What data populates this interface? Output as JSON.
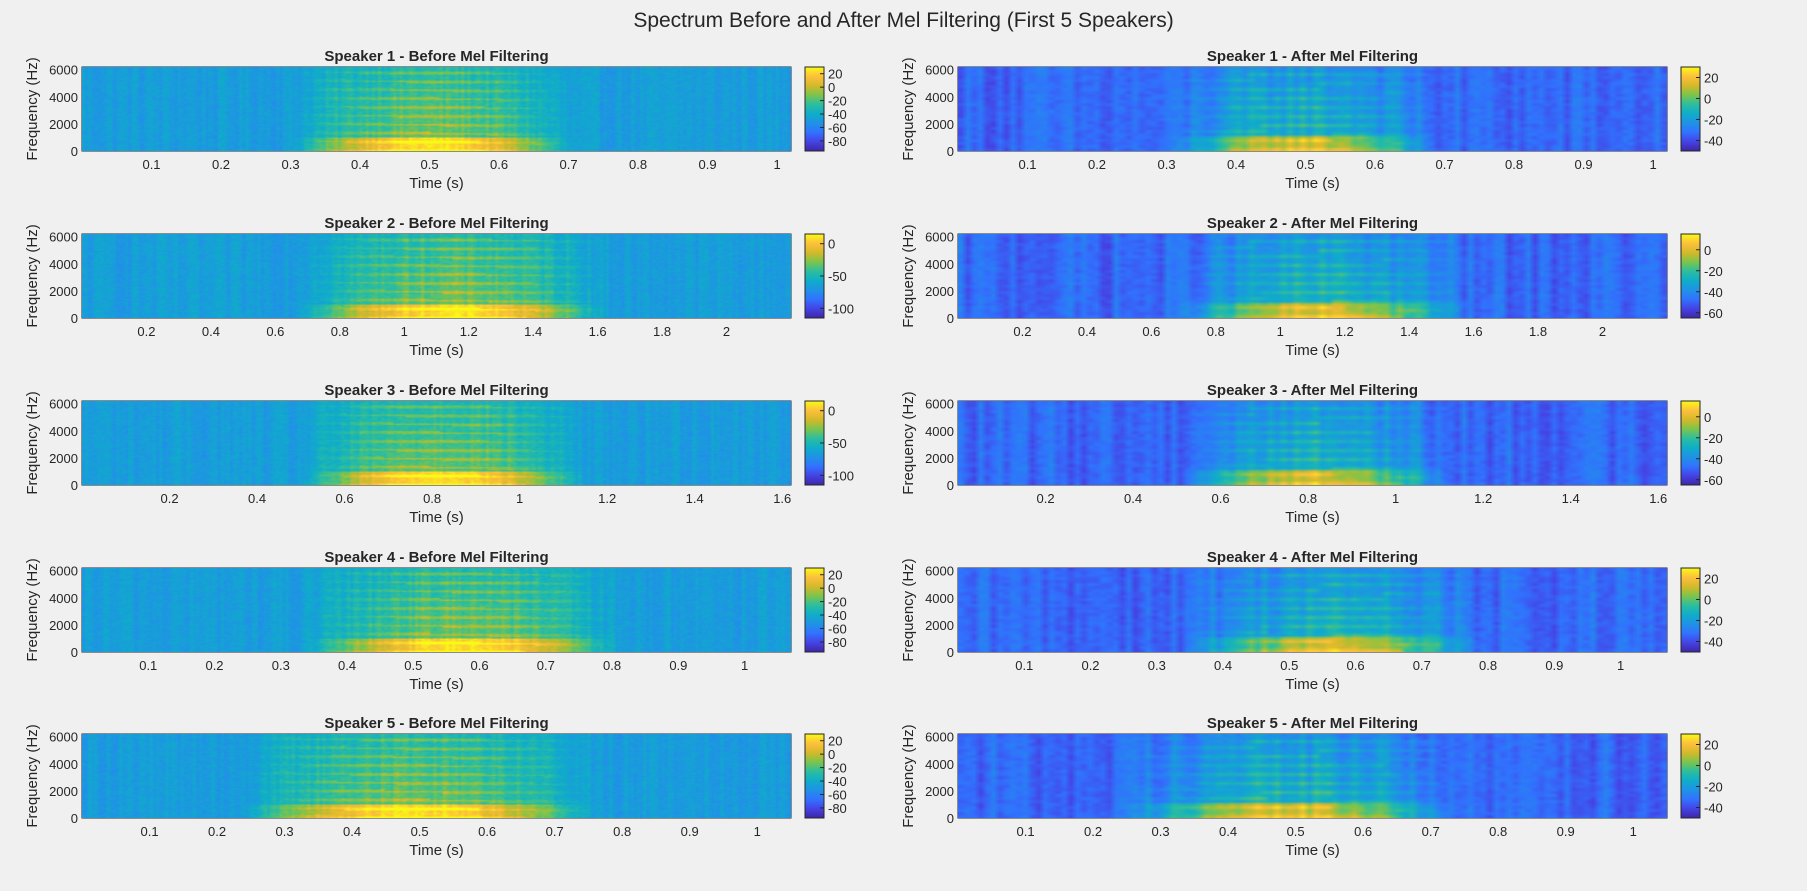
{
  "figure": {
    "title": "Spectrum Before and After Mel Filtering (First 5 Speakers)"
  },
  "colors": {
    "background": "#f0f0f0",
    "colormap": "parula",
    "colormap_stops": [
      "#3e26a8",
      "#4543e4",
      "#3172fe",
      "#2092e6",
      "#0fadc9",
      "#2cbe9e",
      "#7bc44c",
      "#d4b929",
      "#fdc03c",
      "#f9fa14"
    ]
  },
  "chart_data": [
    {
      "type": "heatmap",
      "title": "Speaker 1 - Before Mel Filtering",
      "xlabel": "Time (s)",
      "ylabel": "Frequency (Hz)",
      "xlim": [
        0,
        1.02
      ],
      "ylim": [
        0,
        6200
      ],
      "xticks": [
        "0.1",
        "0.2",
        "0.3",
        "0.4",
        "0.5",
        "0.6",
        "0.7",
        "0.8",
        "0.9",
        "1"
      ],
      "yticks": [
        "0",
        "2000",
        "4000",
        "6000"
      ],
      "colorbar": {
        "ticks": [
          "20",
          "0",
          "-20",
          "-40",
          "-60",
          "-80"
        ],
        "clim": [
          -95,
          30
        ]
      }
    },
    {
      "type": "heatmap",
      "title": "Speaker 1 - After Mel Filtering",
      "xlabel": "Time (s)",
      "ylabel": "Frequency (Hz)",
      "xlim": [
        0,
        1.02
      ],
      "ylim": [
        0,
        6200
      ],
      "xticks": [
        "0.1",
        "0.2",
        "0.3",
        "0.4",
        "0.5",
        "0.6",
        "0.7",
        "0.8",
        "0.9",
        "1"
      ],
      "yticks": [
        "0",
        "2000",
        "4000",
        "6000"
      ],
      "colorbar": {
        "ticks": [
          "20",
          "0",
          "-20",
          "-40"
        ],
        "clim": [
          -50,
          30
        ]
      }
    },
    {
      "type": "heatmap",
      "title": "Speaker 2 - Before Mel Filtering",
      "xlabel": "Time (s)",
      "ylabel": "Frequency (Hz)",
      "xlim": [
        0,
        2.2
      ],
      "ylim": [
        0,
        6200
      ],
      "xticks": [
        "0.2",
        "0.4",
        "0.6",
        "0.8",
        "1",
        "1.2",
        "1.4",
        "1.6",
        "1.8",
        "2"
      ],
      "yticks": [
        "0",
        "2000",
        "4000",
        "6000"
      ],
      "colorbar": {
        "ticks": [
          "0",
          "-50",
          "-100"
        ],
        "clim": [
          -115,
          15
        ]
      }
    },
    {
      "type": "heatmap",
      "title": "Speaker 2 - After Mel Filtering",
      "xlabel": "Time (s)",
      "ylabel": "Frequency (Hz)",
      "xlim": [
        0,
        2.2
      ],
      "ylim": [
        0,
        6200
      ],
      "xticks": [
        "0.2",
        "0.4",
        "0.6",
        "0.8",
        "1",
        "1.2",
        "1.4",
        "1.6",
        "1.8",
        "2"
      ],
      "yticks": [
        "0",
        "2000",
        "4000",
        "6000"
      ],
      "colorbar": {
        "ticks": [
          "0",
          "-20",
          "-40",
          "-60"
        ],
        "clim": [
          -65,
          15
        ]
      }
    },
    {
      "type": "heatmap",
      "title": "Speaker 3 - Before Mel Filtering",
      "xlabel": "Time (s)",
      "ylabel": "Frequency (Hz)",
      "xlim": [
        0,
        1.62
      ],
      "ylim": [
        0,
        6200
      ],
      "xticks": [
        "0.2",
        "0.4",
        "0.6",
        "0.8",
        "1",
        "1.2",
        "1.4",
        "1.6"
      ],
      "yticks": [
        "0",
        "2000",
        "4000",
        "6000"
      ],
      "colorbar": {
        "ticks": [
          "0",
          "-50",
          "-100"
        ],
        "clim": [
          -115,
          15
        ]
      }
    },
    {
      "type": "heatmap",
      "title": "Speaker 3 - After Mel Filtering",
      "xlabel": "Time (s)",
      "ylabel": "Frequency (Hz)",
      "xlim": [
        0,
        1.62
      ],
      "ylim": [
        0,
        6200
      ],
      "xticks": [
        "0.2",
        "0.4",
        "0.6",
        "0.8",
        "1",
        "1.2",
        "1.4",
        "1.6"
      ],
      "yticks": [
        "0",
        "2000",
        "4000",
        "6000"
      ],
      "colorbar": {
        "ticks": [
          "0",
          "-20",
          "-40",
          "-60"
        ],
        "clim": [
          -65,
          15
        ]
      }
    },
    {
      "type": "heatmap",
      "title": "Speaker 4 - Before Mel Filtering",
      "xlabel": "Time (s)",
      "ylabel": "Frequency (Hz)",
      "xlim": [
        0,
        1.07
      ],
      "ylim": [
        0,
        6200
      ],
      "xticks": [
        "0.1",
        "0.2",
        "0.3",
        "0.4",
        "0.5",
        "0.6",
        "0.7",
        "0.8",
        "0.9",
        "1"
      ],
      "yticks": [
        "0",
        "2000",
        "4000",
        "6000"
      ],
      "colorbar": {
        "ticks": [
          "20",
          "0",
          "-20",
          "-40",
          "-60",
          "-80"
        ],
        "clim": [
          -95,
          30
        ]
      }
    },
    {
      "type": "heatmap",
      "title": "Speaker 4 - After Mel Filtering",
      "xlabel": "Time (s)",
      "ylabel": "Frequency (Hz)",
      "xlim": [
        0,
        1.07
      ],
      "ylim": [
        0,
        6200
      ],
      "xticks": [
        "0.1",
        "0.2",
        "0.3",
        "0.4",
        "0.5",
        "0.6",
        "0.7",
        "0.8",
        "0.9",
        "1"
      ],
      "yticks": [
        "0",
        "2000",
        "4000",
        "6000"
      ],
      "colorbar": {
        "ticks": [
          "20",
          "0",
          "-20",
          "-40"
        ],
        "clim": [
          -50,
          30
        ]
      }
    },
    {
      "type": "heatmap",
      "title": "Speaker 5 - Before Mel Filtering",
      "xlabel": "Time (s)",
      "ylabel": "Frequency (Hz)",
      "xlim": [
        0,
        1.05
      ],
      "ylim": [
        0,
        6200
      ],
      "xticks": [
        "0.1",
        "0.2",
        "0.3",
        "0.4",
        "0.5",
        "0.6",
        "0.7",
        "0.8",
        "0.9",
        "1"
      ],
      "yticks": [
        "0",
        "2000",
        "4000",
        "6000"
      ],
      "colorbar": {
        "ticks": [
          "20",
          "0",
          "-20",
          "-40",
          "-60",
          "-80"
        ],
        "clim": [
          -95,
          30
        ]
      }
    },
    {
      "type": "heatmap",
      "title": "Speaker 5 - After Mel Filtering",
      "xlabel": "Time (s)",
      "ylabel": "Frequency (Hz)",
      "xlim": [
        0,
        1.05
      ],
      "ylim": [
        0,
        6200
      ],
      "xticks": [
        "0.1",
        "0.2",
        "0.3",
        "0.4",
        "0.5",
        "0.6",
        "0.7",
        "0.8",
        "0.9",
        "1"
      ],
      "yticks": [
        "0",
        "2000",
        "4000",
        "6000"
      ],
      "colorbar": {
        "ticks": [
          "20",
          "0",
          "-20",
          "-40"
        ],
        "clim": [
          -50,
          30
        ]
      }
    }
  ]
}
